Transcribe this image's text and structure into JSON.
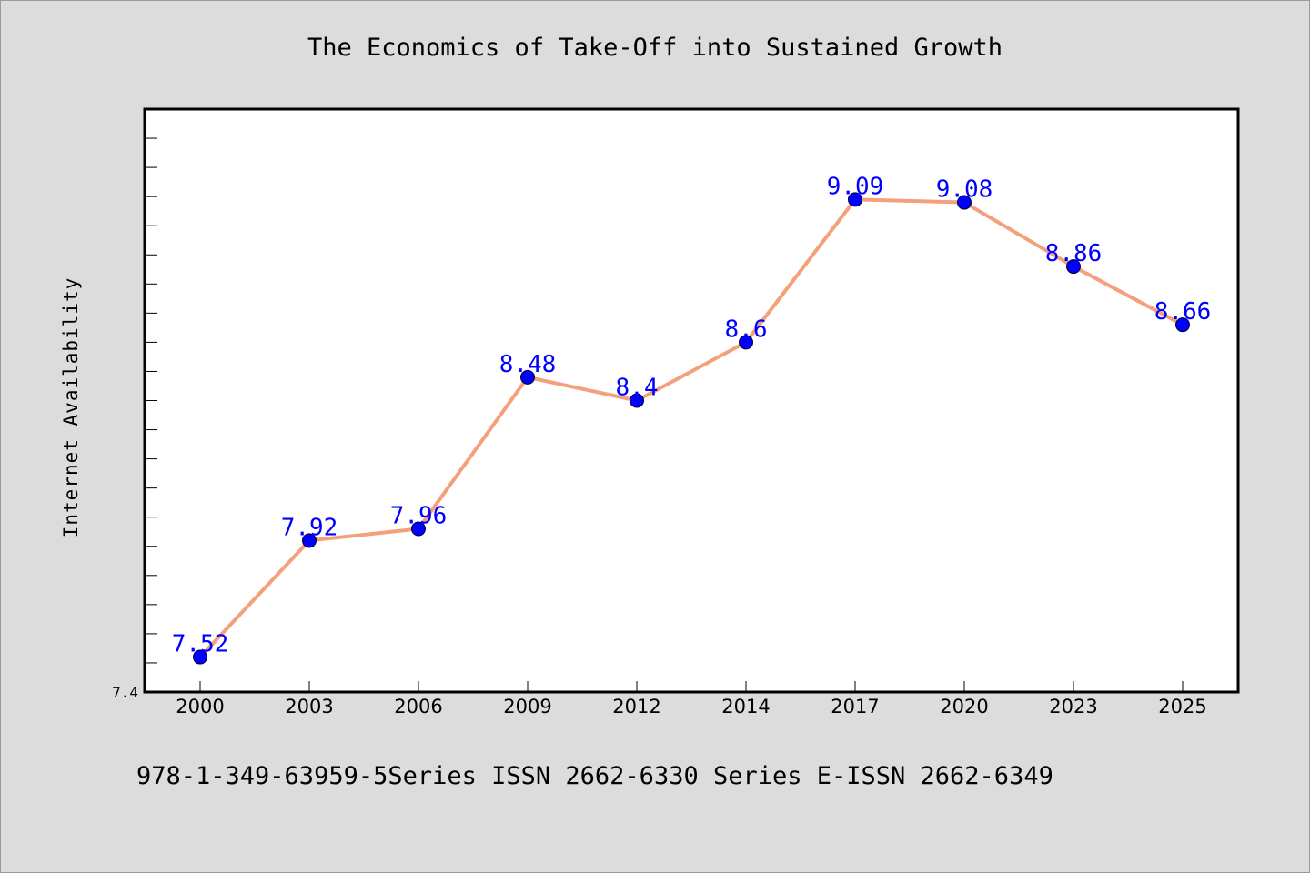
{
  "chart_data": {
    "type": "line",
    "title": "The Economics of Take-Off into Sustained Growth",
    "ylabel": "Internet Availability",
    "xlabel": "",
    "categories": [
      "2000",
      "2003",
      "2006",
      "2009",
      "2012",
      "2014",
      "2017",
      "2020",
      "2023",
      "2025"
    ],
    "values": [
      7.52,
      7.92,
      7.96,
      8.48,
      8.4,
      8.6,
      9.09,
      9.08,
      8.86,
      8.66
    ],
    "data_labels": [
      "7.52",
      "7.92",
      "7.96",
      "8.48",
      "8.4",
      "8.6",
      "9.09",
      "9.08",
      "8.86",
      "8.66"
    ],
    "ylim": [
      7.4,
      9.4
    ],
    "y_tick_labels": [
      "7.4"
    ],
    "grid": false,
    "legend": "none",
    "colors": {
      "line": "#f4a07c",
      "marker": "#0000ff",
      "data_label": "#0000ff",
      "background": "#dcdcdc",
      "plot_background": "#ffffff"
    }
  },
  "footer": {
    "text": "978-1-349-63959-5Series ISSN 2662-6330 Series E-ISSN 2662-6349"
  }
}
